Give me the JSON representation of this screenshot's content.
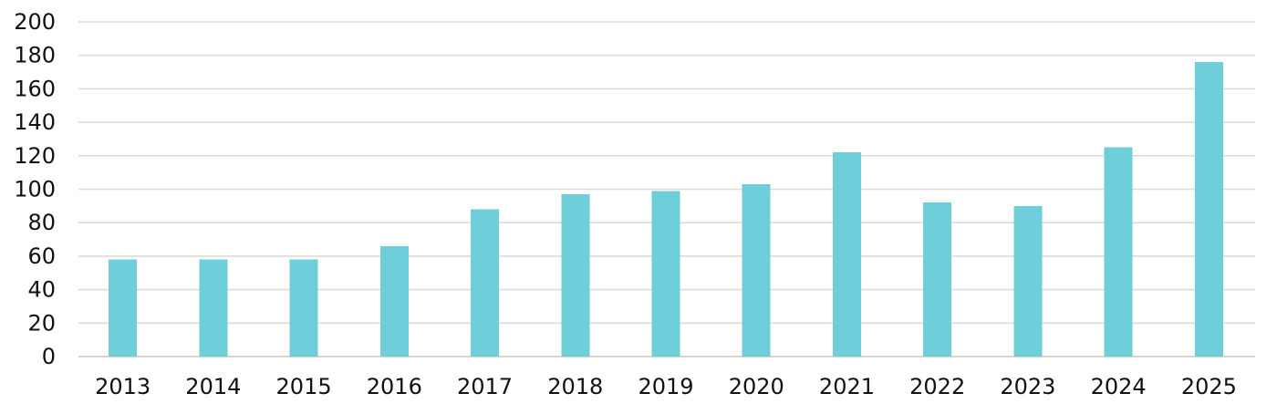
{
  "chart_data": {
    "type": "bar",
    "title": "",
    "xlabel": "",
    "ylabel": "",
    "categories": [
      "2013",
      "2014",
      "2015",
      "2016",
      "2017",
      "2018",
      "2019",
      "2020",
      "2021",
      "2022",
      "2023",
      "2024",
      "2025"
    ],
    "series": [
      {
        "values": [
          58,
          58,
          58,
          66,
          88,
          97,
          99,
          103,
          122,
          92,
          90,
          125,
          176
        ]
      }
    ],
    "ylim": [
      0,
      200
    ],
    "yticks": [
      0,
      20,
      40,
      60,
      80,
      100,
      120,
      140,
      160,
      180,
      200
    ],
    "grid": true,
    "legend": "none",
    "bar_color": "#6ecfdb"
  }
}
